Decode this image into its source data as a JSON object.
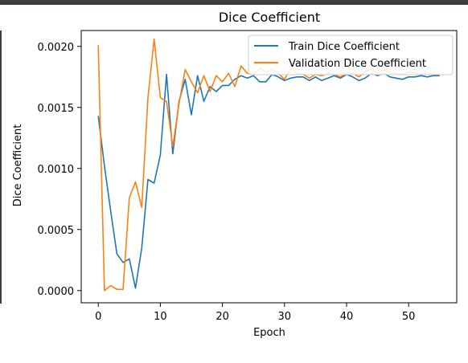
{
  "chart_data": {
    "type": "line",
    "title": "Dice Coefficient",
    "xlabel": "Epoch",
    "ylabel": "Dice Coefficient",
    "xlim": [
      -2.75,
      57.75
    ],
    "ylim": [
      -0.0001,
      0.00213
    ],
    "xticks": [
      0,
      10,
      20,
      30,
      40,
      50
    ],
    "xtick_labels": [
      "0",
      "10",
      "20",
      "30",
      "40",
      "50"
    ],
    "yticks": [
      0.0,
      0.0005,
      0.001,
      0.0015,
      0.002
    ],
    "ytick_labels": [
      "0.0000",
      "0.0005",
      "0.0010",
      "0.0015",
      "0.0020"
    ],
    "grid": false,
    "legend_position": "top-right",
    "series": [
      {
        "name": "Train Dice Coefficient",
        "color": "#1f77b4",
        "x": [
          0,
          1,
          2,
          3,
          4,
          5,
          6,
          7,
          8,
          9,
          10,
          11,
          12,
          13,
          14,
          15,
          16,
          17,
          18,
          19,
          20,
          21,
          22,
          23,
          24,
          25,
          26,
          27,
          28,
          29,
          30,
          31,
          32,
          33,
          34,
          35,
          36,
          37,
          38,
          39,
          40,
          41,
          42,
          43,
          44,
          45,
          46,
          47,
          48,
          49,
          50,
          51,
          52,
          53,
          54,
          55
        ],
        "values": [
          0.00143,
          0.00102,
          0.00065,
          0.0003,
          0.00023,
          0.00026,
          2e-05,
          0.00035,
          0.00091,
          0.00088,
          0.00111,
          0.00177,
          0.00112,
          0.00155,
          0.00173,
          0.00144,
          0.00176,
          0.00155,
          0.00167,
          0.00163,
          0.00168,
          0.00168,
          0.00173,
          0.00176,
          0.00174,
          0.00176,
          0.00171,
          0.00171,
          0.00177,
          0.00175,
          0.00172,
          0.00174,
          0.00175,
          0.00175,
          0.00172,
          0.00175,
          0.00172,
          0.00174,
          0.00176,
          0.00174,
          0.00177,
          0.00175,
          0.00172,
          0.00174,
          0.00178,
          0.00176,
          0.00178,
          0.00175,
          0.00174,
          0.00173,
          0.00175,
          0.00175,
          0.00176,
          0.00175,
          0.00176,
          0.00176
        ]
      },
      {
        "name": "Validation Dice Coefficient",
        "color": "#ff7f0e",
        "x": [
          0,
          1,
          2,
          3,
          4,
          5,
          6,
          7,
          8,
          9,
          10,
          11,
          12,
          13,
          14,
          15,
          16,
          17,
          18,
          19,
          20,
          21,
          22,
          23,
          24,
          25,
          26,
          27,
          28,
          29,
          30,
          31,
          32,
          33,
          34,
          35,
          36,
          37,
          38,
          39,
          40,
          41,
          42,
          43,
          44,
          45,
          46,
          47,
          48,
          49,
          50,
          51,
          52,
          53,
          54,
          55
        ],
        "values": [
          0.00201,
          0.0,
          4e-05,
          1e-05,
          1e-05,
          0.00076,
          0.00089,
          0.00068,
          0.00158,
          0.00206,
          0.00158,
          0.00155,
          0.00118,
          0.00153,
          0.00181,
          0.00171,
          0.00162,
          0.00176,
          0.00163,
          0.00176,
          0.00171,
          0.00178,
          0.00167,
          0.00184,
          0.00178,
          0.00177,
          0.00182,
          0.00179,
          0.00181,
          0.00178,
          0.00173,
          0.00182,
          0.00178,
          0.00177,
          0.00174,
          0.00177,
          0.00176,
          0.00178,
          0.00177,
          0.00175,
          0.00178,
          0.00178,
          0.00175,
          0.00179,
          0.00182,
          0.00178,
          0.00181,
          0.00178,
          0.00178,
          0.00177,
          0.00179,
          0.00178,
          0.00177,
          0.00178,
          0.00177,
          0.00177
        ]
      }
    ]
  }
}
